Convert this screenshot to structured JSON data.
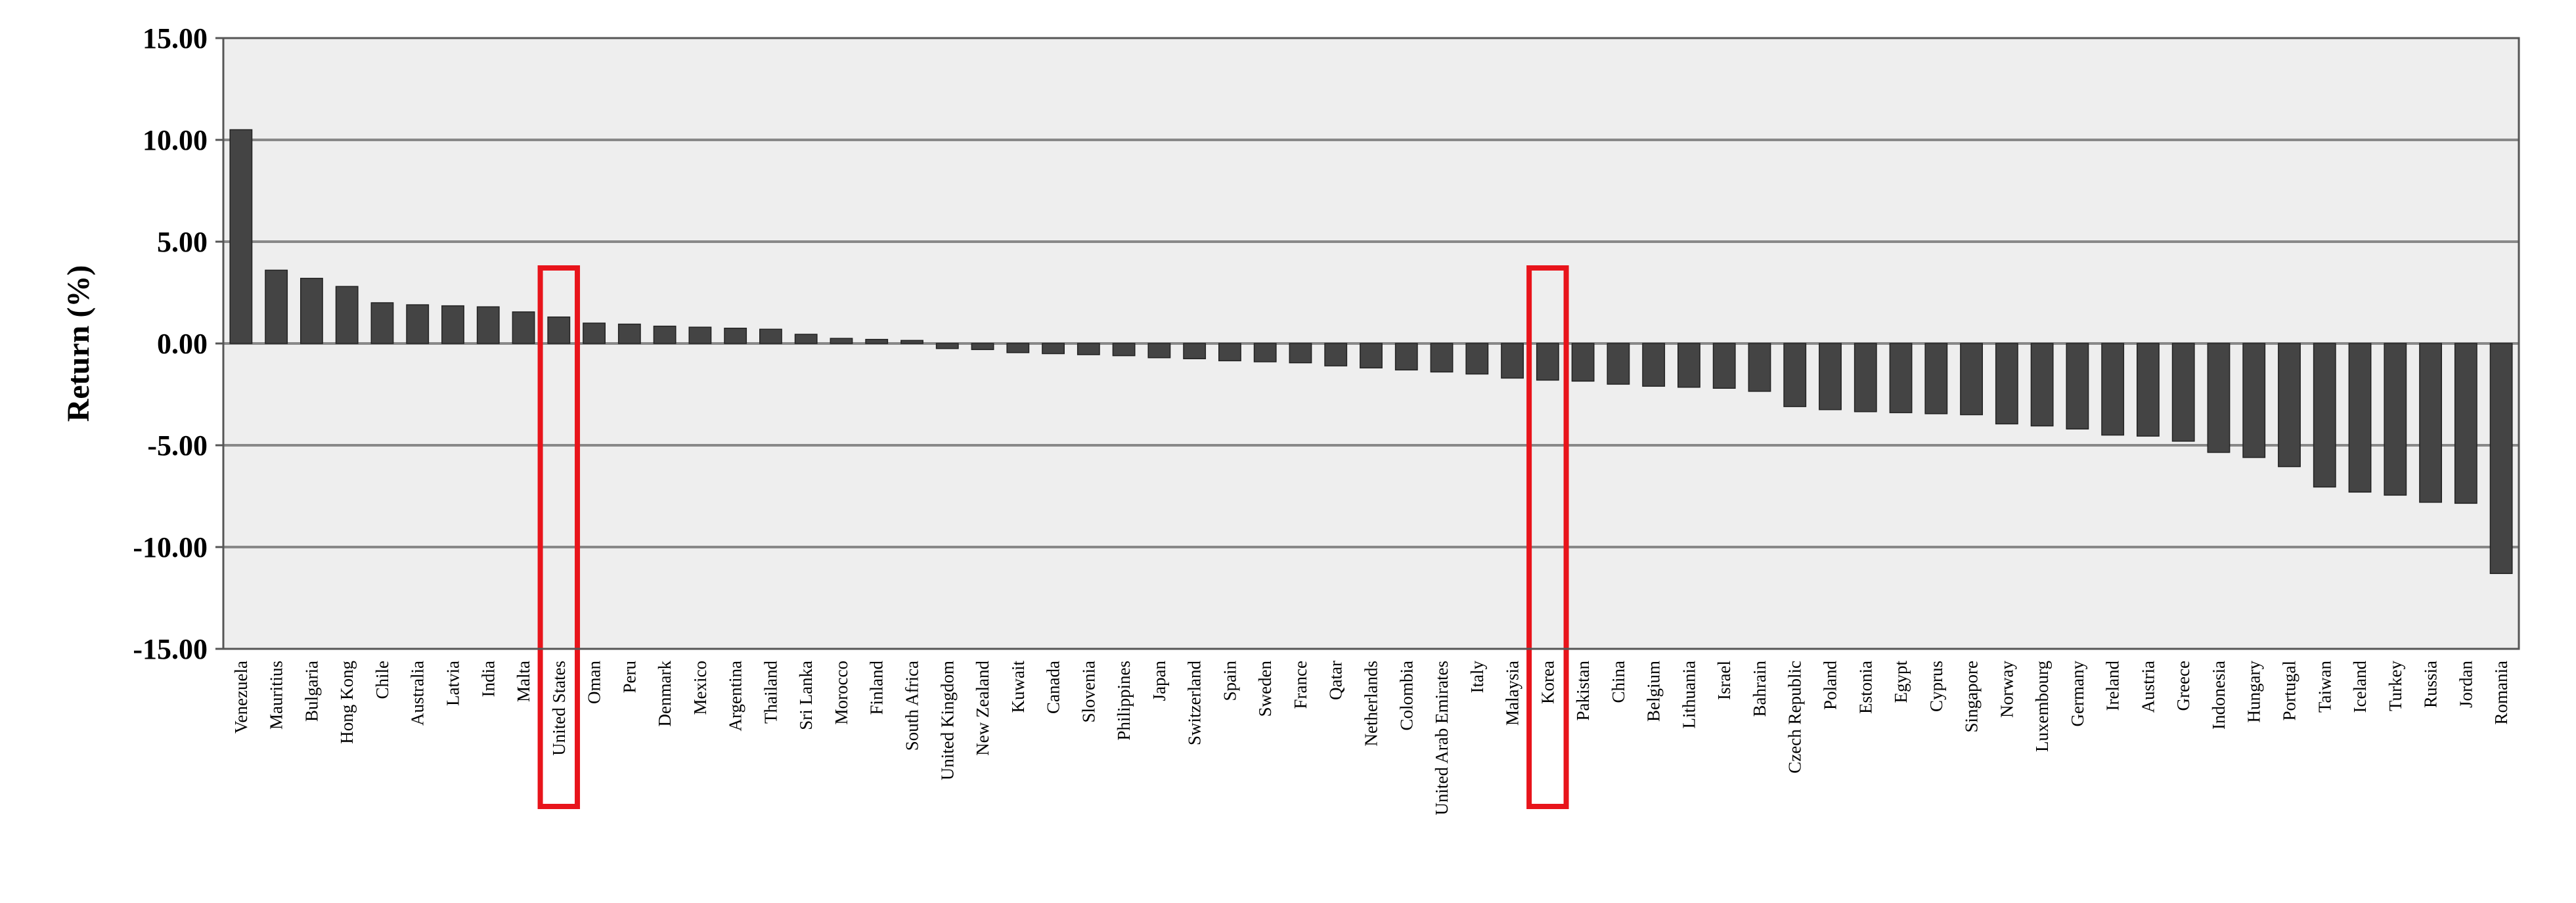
{
  "chart_data": {
    "type": "bar",
    "ylabel": "Return (%)",
    "xlabel": "",
    "title": "",
    "ylim": [
      -15,
      15
    ],
    "yticks": [
      "15.00",
      "10.00",
      "5.00",
      "0.00",
      "-5.00",
      "-10.00",
      "-15.00"
    ],
    "grid": true,
    "legend": "none",
    "colors": {
      "bar": "#444444",
      "plot_background": "#eeeeee",
      "gridline": "#888888",
      "highlight": "#e8141b"
    },
    "highlighted_categories": [
      "United States",
      "Korea"
    ],
    "categories": [
      "Venezuela",
      "Mauritius",
      "Bulgaria",
      "Hong Kong",
      "Chile",
      "Australia",
      "Latvia",
      "India",
      "Malta",
      "United States",
      "Oman",
      "Peru",
      "Denmark",
      "Mexico",
      "Argentina",
      "Thailand",
      "Sri Lanka",
      "Morocco",
      "Finland",
      "South Africa",
      "United Kingdom",
      "New Zealand",
      "Kuwait",
      "Canada",
      "Slovenia",
      "Philippines",
      "Japan",
      "Switzerland",
      "Spain",
      "Sweden",
      "France",
      "Qatar",
      "Netherlands",
      "Colombia",
      "United Arab Emirates",
      "Italy",
      "Malaysia",
      "Korea",
      "Pakistan",
      "China",
      "Belgium",
      "Lithuania",
      "Israel",
      "Bahrain",
      "Czech Republic",
      "Poland",
      "Estonia",
      "Egypt",
      "Cyprus",
      "Singapore",
      "Norway",
      "Luxembourg",
      "Germany",
      "Ireland",
      "Austria",
      "Greece",
      "Indonesia",
      "Hungary",
      "Portugal",
      "Taiwan",
      "Iceland",
      "Turkey",
      "Russia",
      "Jordan",
      "Romania"
    ],
    "values": [
      10.5,
      3.6,
      3.2,
      2.8,
      2.0,
      1.9,
      1.85,
      1.8,
      1.55,
      1.3,
      1.0,
      0.95,
      0.85,
      0.8,
      0.75,
      0.7,
      0.45,
      0.25,
      0.2,
      0.15,
      -0.25,
      -0.3,
      -0.45,
      -0.5,
      -0.55,
      -0.6,
      -0.7,
      -0.75,
      -0.85,
      -0.9,
      -0.95,
      -1.1,
      -1.2,
      -1.3,
      -1.4,
      -1.5,
      -1.7,
      -1.8,
      -1.85,
      -2.0,
      -2.1,
      -2.15,
      -2.2,
      -2.35,
      -3.1,
      -3.25,
      -3.35,
      -3.4,
      -3.45,
      -3.5,
      -3.95,
      -4.05,
      -4.2,
      -4.5,
      -4.55,
      -4.8,
      -5.35,
      -5.6,
      -6.05,
      -7.05,
      -7.3,
      -7.45,
      -7.8,
      -7.85,
      -11.3
    ]
  }
}
